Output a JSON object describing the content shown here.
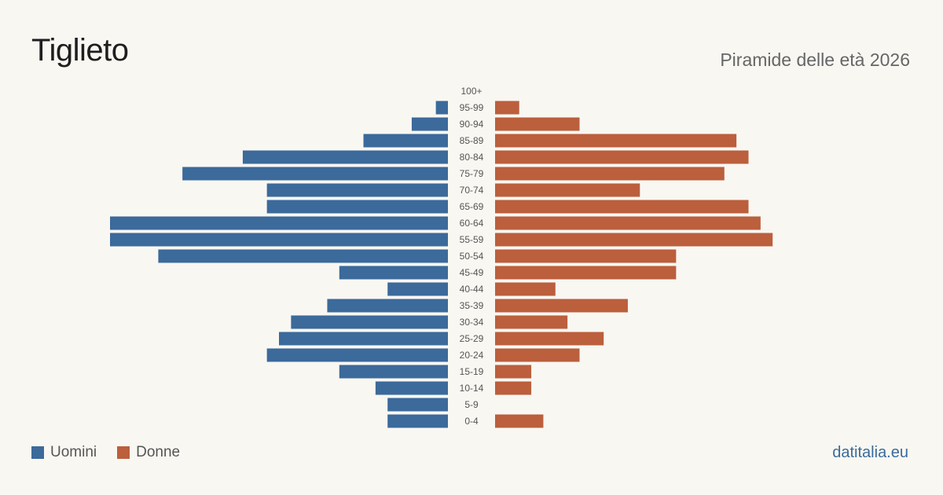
{
  "header": {
    "title": "Tiglieto",
    "subtitle": "Piramide delle età 2026"
  },
  "legend": {
    "men_label": "Uomini",
    "women_label": "Donne"
  },
  "footer": {
    "source": "datitalia.eu"
  },
  "colors": {
    "men": "#3b6a9b",
    "women": "#bb5f3d",
    "tick_text": "#555555"
  },
  "chart_data": {
    "type": "bar",
    "orientation": "horizontal-pyramid",
    "categories": [
      "100+",
      "95-99",
      "90-94",
      "85-89",
      "80-84",
      "75-79",
      "70-74",
      "65-69",
      "60-64",
      "55-59",
      "50-54",
      "45-49",
      "40-44",
      "35-39",
      "30-34",
      "25-29",
      "20-24",
      "15-19",
      "10-14",
      "5-9",
      "0-4"
    ],
    "series": [
      {
        "name": "Uomini",
        "values": [
          0,
          1,
          3,
          7,
          17,
          22,
          15,
          15,
          28,
          28,
          24,
          9,
          5,
          10,
          13,
          14,
          15,
          9,
          6,
          5,
          5
        ]
      },
      {
        "name": "Donne",
        "values": [
          0,
          2,
          7,
          20,
          21,
          19,
          12,
          21,
          22,
          23,
          15,
          15,
          5,
          11,
          6,
          9,
          7,
          3,
          3,
          0,
          4
        ]
      }
    ],
    "axis_max": 28,
    "legend_position": "bottom-left",
    "grid": false
  }
}
